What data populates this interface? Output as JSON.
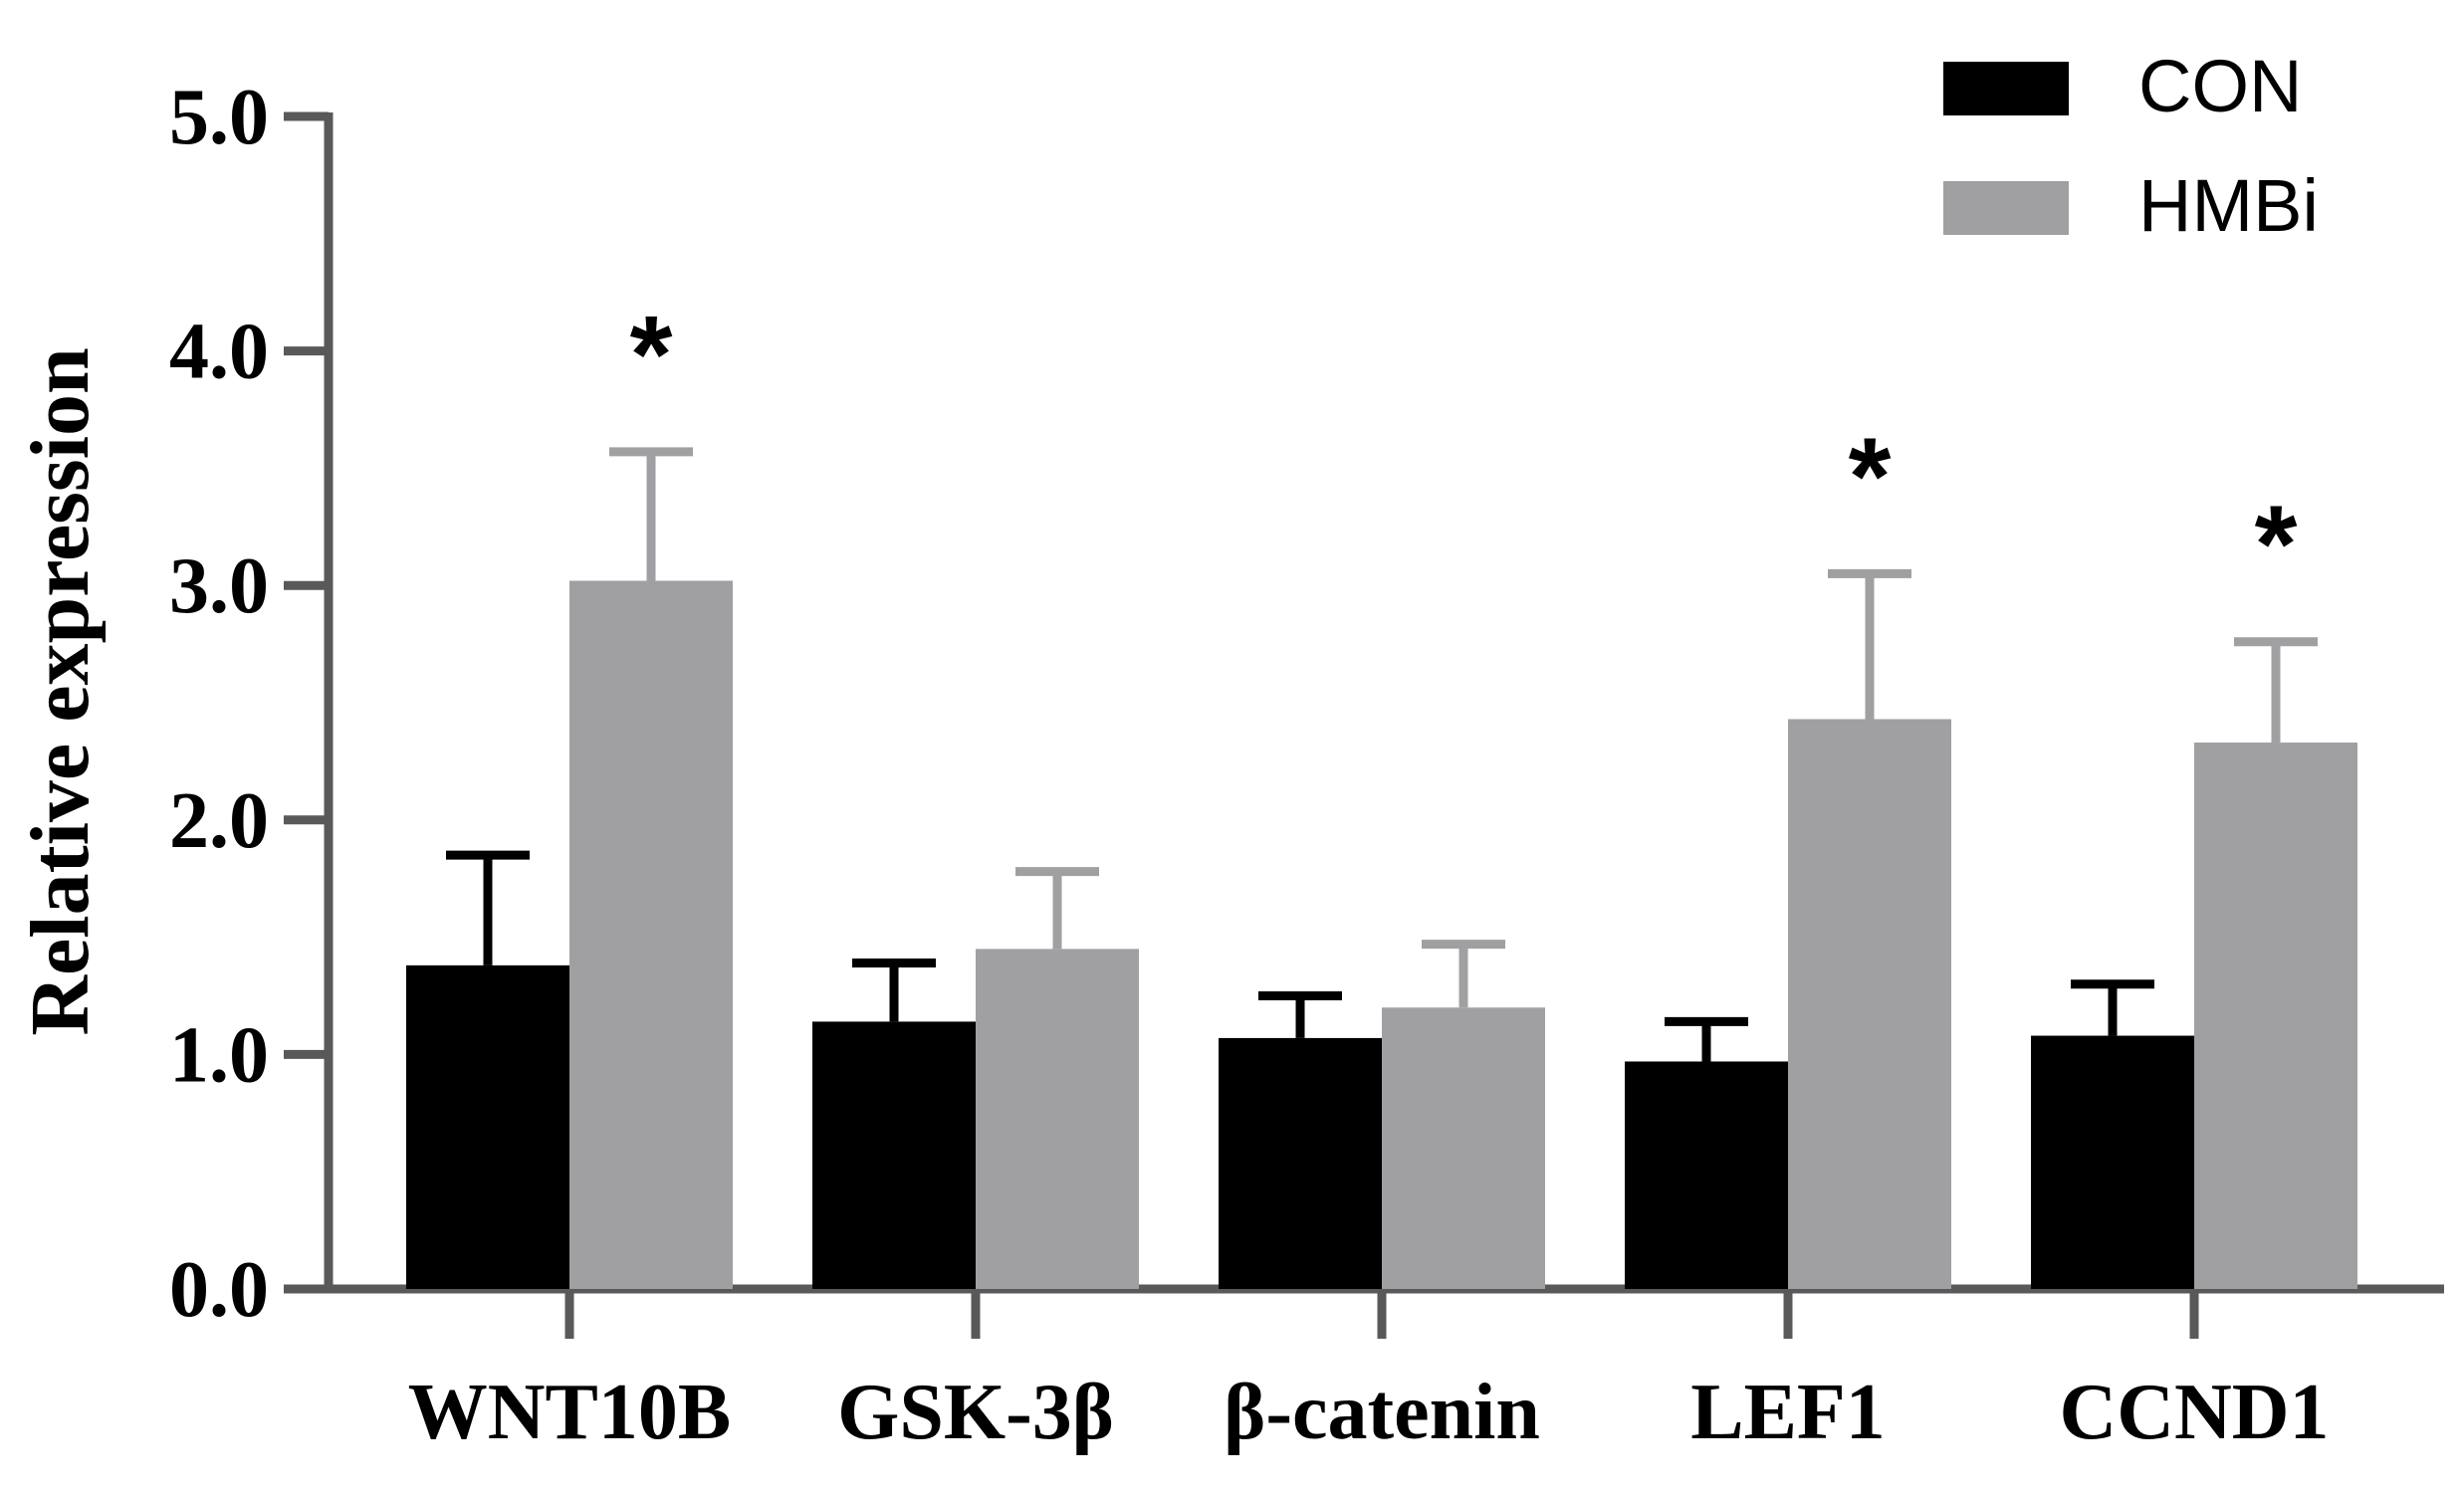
{
  "chart_data": {
    "type": "bar",
    "title": "",
    "xlabel": "",
    "ylabel": "Relative expression",
    "ylim": [
      0,
      5
    ],
    "yticks": [
      "0.0",
      "1.0",
      "2.0",
      "3.0",
      "4.0",
      "5.0"
    ],
    "categories": [
      "WNT10B",
      "GSK-3β",
      "β-catenin",
      "LEF1",
      "CCND1"
    ],
    "series": [
      {
        "name": "CON",
        "color": "#000000",
        "values": [
          1.38,
          1.14,
          1.07,
          0.97,
          1.08
        ],
        "errors": [
          0.47,
          0.25,
          0.18,
          0.17,
          0.22
        ]
      },
      {
        "name": "HMBi",
        "color": "#a0a0a3",
        "values": [
          3.02,
          1.45,
          1.2,
          2.43,
          2.33
        ],
        "errors": [
          0.55,
          0.33,
          0.27,
          0.62,
          0.43
        ]
      }
    ],
    "significance": [
      "*",
      "",
      "",
      "*",
      "*"
    ],
    "legend_position": "top-right",
    "axis_color": "#595959",
    "grid": false
  }
}
